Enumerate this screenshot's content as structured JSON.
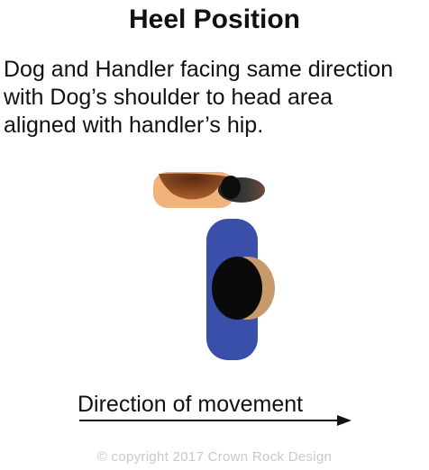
{
  "title": "Heel Position",
  "description": {
    "line1": "Dog and Handler facing same direction",
    "line2": "with Dog’s shoulder to head area",
    "line3": "aligned with handler’s hip."
  },
  "direction_label": "Direction of movement",
  "copyright": "© copyright 2017 Crown Rock Design",
  "colors": {
    "dog_body": "#f2b27c",
    "dog_saddle": "#7a3e1c",
    "dog_head": "#111111",
    "handler_body": "#3a4faa",
    "handler_head": "#0a0a0a",
    "handler_head_rim": "#c89a6a",
    "arrow": "#111111"
  }
}
